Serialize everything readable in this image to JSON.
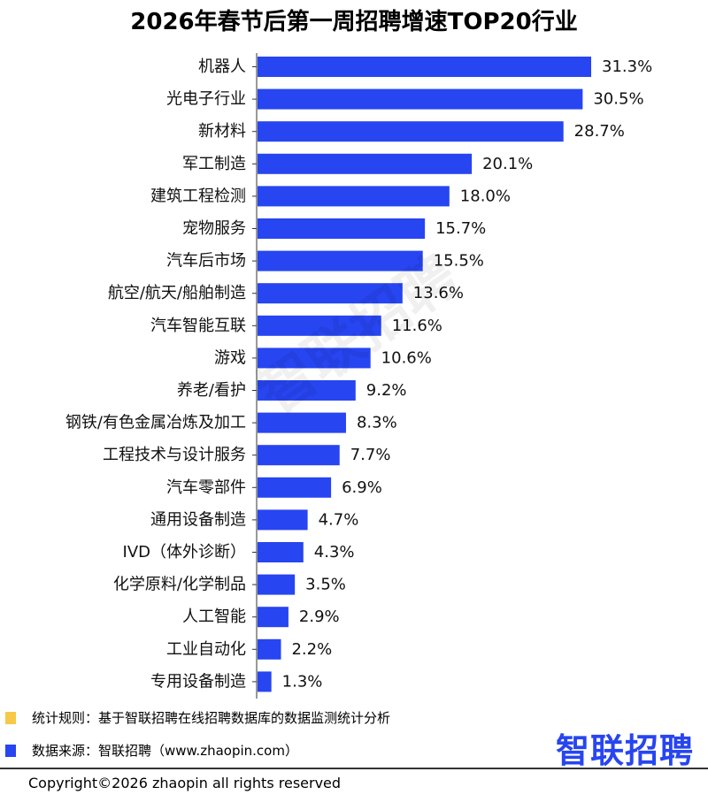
{
  "colors": {
    "bar": "#2745f0",
    "note_rule": "#f7c948",
    "note_source": "#2745f0",
    "logo": "#2745f0"
  },
  "chart_data": {
    "type": "bar",
    "orientation": "horizontal",
    "title": "2026年春节后第一周招聘增速TOP20行业",
    "categories": [
      "机器人",
      "光电子行业",
      "新材料",
      "军工制造",
      "建筑工程检测",
      "宠物服务",
      "汽车后市场",
      "航空/航天/船舶制造",
      "汽车智能互联",
      "游戏",
      "养老/看护",
      "钢铁/有色金属冶炼及加工",
      "工程技术与设计服务",
      "汽车零部件",
      "通用设备制造",
      "IVD（体外诊断）",
      "化学原料/化学制品",
      "人工智能",
      "工业自动化",
      "专用设备制造"
    ],
    "values": [
      31.3,
      30.5,
      28.7,
      20.1,
      18.0,
      15.7,
      15.5,
      13.6,
      11.6,
      10.6,
      9.2,
      8.3,
      7.7,
      6.9,
      4.7,
      4.3,
      3.5,
      2.9,
      2.2,
      1.3
    ],
    "value_labels": [
      "31.3%",
      "30.5%",
      "28.7%",
      "20.1%",
      "18.0%",
      "15.7%",
      "15.5%",
      "13.6%",
      "11.6%",
      "10.6%",
      "9.2%",
      "8.3%",
      "7.7%",
      "6.9%",
      "4.7%",
      "4.3%",
      "3.5%",
      "2.9%",
      "2.2%",
      "1.3%"
    ],
    "xlim": [
      0,
      31.3
    ],
    "grid": false,
    "legend": "none"
  },
  "watermark": "智联招聘",
  "notes": {
    "rule": "统计规则：基于智联招聘在线招聘数据库的数据监测统计分析",
    "source": "数据来源：智联招聘（www.zhaopin.com）"
  },
  "logo_text": "智联招聘",
  "copyright": "Copyright©2026 zhaopin all rights reserved"
}
